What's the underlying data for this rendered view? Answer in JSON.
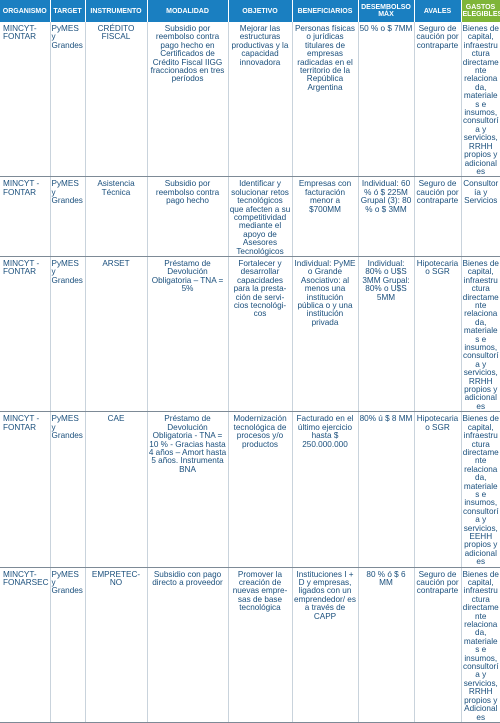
{
  "headers": [
    "ORGANISMO",
    "TARGET",
    "INSTRUMENTO",
    "MODALIDAD",
    "OBJETIVO",
    "BENEFICIARIOS",
    "DESEMBOLSO MÁX",
    "AVALES",
    "GASTOS ELEGIBLES"
  ],
  "rows": [
    {
      "organismo": "MINCYT-FONTAR",
      "target": "PyMES y Grandes",
      "instrumento": "CRÉDITO FISCAL",
      "modalidad": "Subsidio por reembolso contra pago hecho en Certificados de Crédito Fiscal IIGG fraccionados en tres períodos",
      "objetivo": "Mejorar las estructuras productivas y la capacidad innovadora",
      "beneficiarios": "Personas físicas o jurídicas titulares de empresas radicadas en el territorio de la República Argentina",
      "desembolso": "50 % o $ 7MM",
      "avales": "Seguro de caución por contraparte",
      "gastos": "Bienes de capital, infraestructura directamente relacionada, materiales e insumos, consultoría y servicios, RRHH propios y adicionales"
    },
    {
      "organismo": "MINCYT - FONTAR",
      "target": "PyMES y Grandes",
      "instrumento": "Asistencia Técnica",
      "modalidad": "Subsidio por reembolso contra pago hecho",
      "objetivo": "Identificar y solucionar retos tecnológicos que afecten a su competitividad mediante el apoyo de Asesores Tecnológicos",
      "beneficiarios": "Empresas con facturación menor a $700MM",
      "desembolso": "Individual: 60 % ó $ 225M Grupal (3): 80 % o $ 3MM",
      "avales": "Seguro de caución por contraparte",
      "gastos": "Consultoría y Servicios"
    },
    {
      "organismo": "MINCYT - FONTAR",
      "target": "PyMES y Grandes",
      "instrumento": "ARSET",
      "modalidad": "Préstamo de Devolución Obligatoria – TNA = 5%",
      "objetivo": "Fortalecer y desarrollar capacidades para la presta- ción de servi- cios tecnológi- cos",
      "beneficiarios": "Individual: PyME o Grande Asociativo: al menos una institución pública o y una institución privada",
      "desembolso": "Individual: 80% o U$S 3MM Grupal: 80% o U$S 5MM",
      "avales": "Hipotecaria o SGR",
      "gastos": "Bienes de capital, infraestructura directamente relacionada, materiales e insumos, consultoría y servicios, RRHH propios y adicionales"
    },
    {
      "organismo": "MINCYT - FONTAR",
      "target": "PyMES y Grandes",
      "instrumento": "CAE",
      "modalidad": "Préstamo de Devolución Obligatoria - TNA = 10 % - Gracias hasta 4 años – Amort hasta 5 años. Instrumenta BNA",
      "objetivo": "Modernización tecnológica de procesos y/o productos",
      "beneficiarios": "Facturado en el último ejercicio hasta $ 250.000.000",
      "desembolso": "80% ú $ 8 MM",
      "avales": "Hipotecaria o SGR",
      "gastos": "Bienes de capital, infraestructura directamente relacionada, materiales e insumos, consultoría y servicios, EEHH propios y adicionales"
    },
    {
      "organismo": "MINCYT- FONARSEC",
      "target": "PyMES y Grandes",
      "instrumento": "EMPRETEC- NO",
      "modalidad": "Subsidio con pago directo a proveedor",
      "objetivo": "Promover la creación de nuevas empre- sas de base tecnológica",
      "beneficiarios": "Instituciones I + D y empresas, ligados con un emprendedor/ es a través de CAPP",
      "desembolso": "80 % ó $ 6 MM",
      "avales": "Seguro de caución por contraparte",
      "gastos": "Bienes de capital, infraestructura directamente relacionada, materiales e insumos, consultoría y servicios, RRHH propios y Adicionales"
    }
  ]
}
